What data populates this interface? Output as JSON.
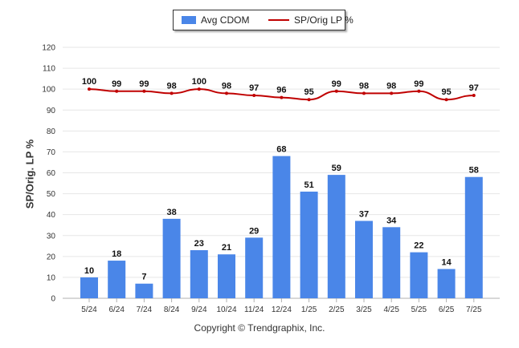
{
  "legend": {
    "bar_label": "Avg CDOM",
    "line_label": "SP/Orig LP %"
  },
  "ylabel": "SP/Orig. LP %",
  "copyright": "Copyright © Trendgraphix, Inc.",
  "colors": {
    "bar": "#4a86e8",
    "line": "#c00000",
    "grid": "#e6e6e6"
  },
  "chart_data": {
    "type": "bar",
    "categories": [
      "5/24",
      "6/24",
      "7/24",
      "8/24",
      "9/24",
      "10/24",
      "11/24",
      "12/24",
      "1/25",
      "2/25",
      "3/25",
      "4/25",
      "5/25",
      "6/25",
      "7/25"
    ],
    "series": [
      {
        "name": "Avg CDOM",
        "type": "bar",
        "values": [
          10,
          18,
          7,
          38,
          23,
          21,
          29,
          68,
          51,
          59,
          37,
          34,
          22,
          14,
          58
        ]
      },
      {
        "name": "SP/Orig LP %",
        "type": "line",
        "values": [
          100,
          99,
          99,
          98,
          100,
          98,
          97,
          96,
          95,
          99,
          98,
          98,
          99,
          95,
          97
        ]
      }
    ],
    "ylabel": "SP/Orig. LP %",
    "ylim": [
      0,
      120
    ],
    "yticks": [
      0,
      10,
      20,
      30,
      40,
      50,
      60,
      70,
      80,
      90,
      100,
      110,
      120
    ],
    "grid": true,
    "legend": "top-center"
  }
}
